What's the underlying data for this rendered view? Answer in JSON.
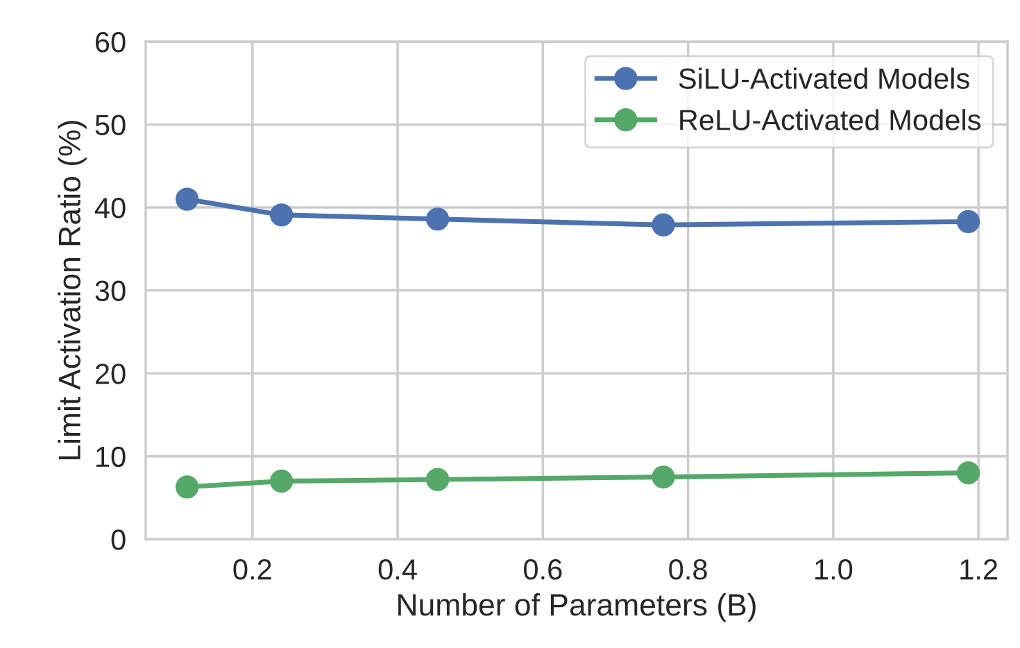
{
  "chart_data": {
    "type": "line",
    "xlabel": "Number of Parameters (B)",
    "ylabel": "Limit Activation Ratio (%)",
    "x": [
      0.11,
      0.24,
      0.455,
      0.766,
      1.186
    ],
    "series": [
      {
        "name": "SiLU-Activated Models",
        "color": "#4c72b0",
        "values": [
          41.0,
          39.1,
          38.6,
          37.9,
          38.3
        ]
      },
      {
        "name": "ReLU-Activated Models",
        "color": "#55a868",
        "values": [
          6.3,
          7.0,
          7.2,
          7.5,
          8.0
        ]
      }
    ],
    "xlim": [
      0.053,
      1.24
    ],
    "ylim": [
      0,
      60
    ],
    "xticks": [
      0.2,
      0.4,
      0.6,
      0.8,
      {
        "value": 1,
        "label": "1.0"
      },
      1.2
    ],
    "yticks": [
      0,
      10,
      20,
      30,
      40,
      50,
      60
    ],
    "grid": true,
    "legend": "top right",
    "marker": "circle",
    "line_style": "solid"
  }
}
